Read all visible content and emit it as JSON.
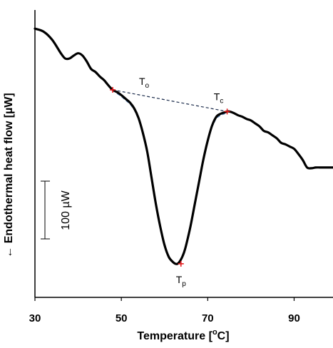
{
  "chart_data": {
    "type": "line",
    "xlabel": "Temperature [",
    "xlabel_sup": "o",
    "xlabel_unit": "C]",
    "ylabel": "← Endothermal heat flow [µW]",
    "xlim": [
      30,
      99
    ],
    "ylim_units": "relative heat flow (µW, arbitrary offset)",
    "ylim": [
      -260,
      125
    ],
    "xticks": [
      30,
      50,
      70,
      90
    ],
    "grid": false,
    "legend": "none",
    "colors": {
      "curve": "#000000",
      "tangent": "#4a7ab5",
      "baseline": "#1a2a4a",
      "markers": "#e41a1c"
    },
    "series": [
      {
        "values_x": [
          30,
          32,
          34,
          36,
          37,
          38,
          39,
          40,
          41,
          42,
          43,
          44,
          45,
          46,
          47,
          48,
          49,
          50,
          51,
          52,
          53,
          54,
          55,
          56,
          57,
          58,
          59,
          60,
          61,
          62,
          62.5,
          63,
          63.5,
          64,
          64.5,
          65,
          66,
          67,
          68,
          69,
          70,
          71,
          72,
          73,
          74,
          74.5,
          75,
          76,
          77,
          78,
          79,
          80,
          81,
          82,
          83,
          84,
          85,
          86,
          87,
          88,
          89,
          90,
          91,
          92,
          93,
          94,
          95,
          96,
          97,
          98,
          99
        ],
        "values_y": [
          100,
          96,
          85,
          67,
          60,
          60,
          64,
          67,
          64,
          56,
          46,
          42,
          36,
          31,
          24,
          18,
          15,
          11,
          6,
          1,
          -7,
          -20,
          -40,
          -65,
          -100,
          -135,
          -165,
          -190,
          -206,
          -213,
          -215,
          -215,
          -212,
          -207,
          -200,
          -190,
          -165,
          -135,
          -105,
          -75,
          -50,
          -30,
          -18,
          -14,
          -12,
          -11,
          -11,
          -13,
          -16,
          -18,
          -21,
          -23,
          -27,
          -31,
          -37,
          -39,
          -43,
          -47,
          -53,
          -55,
          -58,
          -61,
          -68,
          -76,
          -86,
          -87,
          -86,
          -86,
          -86,
          -86,
          -86
        ]
      }
    ],
    "key_points": [
      {
        "label": "T",
        "sub": "o",
        "x": 48.0,
        "y": 18
      },
      {
        "label": "T",
        "sub": "p",
        "x": 63.8,
        "y": -215
      },
      {
        "label": "T",
        "sub": "c",
        "x": 74.5,
        "y": -11
      }
    ],
    "scale_bar": {
      "text": "100 µW",
      "value": 100
    }
  }
}
